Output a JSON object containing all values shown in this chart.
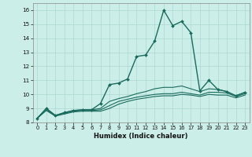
{
  "title": "",
  "xlabel": "Humidex (Indice chaleur)",
  "bg_color": "#cceee8",
  "grid_color": "#aad8d0",
  "line_color": "#1a6b5e",
  "xlim": [
    -0.5,
    23.5
  ],
  "ylim": [
    8.0,
    16.5
  ],
  "xticks": [
    0,
    1,
    2,
    3,
    4,
    5,
    6,
    7,
    8,
    9,
    10,
    11,
    12,
    13,
    14,
    15,
    16,
    17,
    18,
    19,
    20,
    21,
    22,
    23
  ],
  "yticks": [
    8,
    9,
    10,
    11,
    12,
    13,
    14,
    15,
    16
  ],
  "series": [
    {
      "x": [
        0,
        1,
        2,
        3,
        4,
        5,
        6,
        7,
        8,
        9,
        10,
        11,
        12,
        13,
        14,
        15,
        16,
        17,
        18,
        19,
        20,
        21,
        22,
        23
      ],
      "y": [
        8.3,
        9.0,
        8.5,
        8.7,
        8.85,
        8.9,
        8.9,
        9.35,
        10.7,
        10.8,
        11.1,
        12.7,
        12.8,
        13.8,
        16.0,
        14.9,
        15.2,
        14.4,
        10.25,
        11.0,
        10.35,
        10.2,
        9.9,
        10.15
      ],
      "marker": true,
      "lw": 1.0
    },
    {
      "x": [
        0,
        1,
        2,
        3,
        4,
        5,
        6,
        7,
        8,
        9,
        10,
        11,
        12,
        13,
        14,
        15,
        16,
        17,
        18,
        19,
        20,
        21,
        22,
        23
      ],
      "y": [
        8.3,
        9.0,
        8.5,
        8.7,
        8.85,
        8.9,
        8.9,
        9.0,
        9.5,
        9.7,
        9.85,
        10.05,
        10.2,
        10.4,
        10.5,
        10.5,
        10.6,
        10.4,
        10.2,
        10.4,
        10.35,
        10.2,
        9.9,
        10.15
      ],
      "marker": false,
      "lw": 0.8
    },
    {
      "x": [
        0,
        1,
        2,
        3,
        4,
        5,
        6,
        7,
        8,
        9,
        10,
        11,
        12,
        13,
        14,
        15,
        16,
        17,
        18,
        19,
        20,
        21,
        22,
        23
      ],
      "y": [
        8.3,
        8.9,
        8.5,
        8.65,
        8.8,
        8.85,
        8.85,
        8.9,
        9.2,
        9.5,
        9.65,
        9.8,
        9.9,
        10.0,
        10.05,
        10.05,
        10.15,
        10.05,
        9.95,
        10.15,
        10.15,
        10.1,
        9.85,
        10.05
      ],
      "marker": false,
      "lw": 0.8
    },
    {
      "x": [
        0,
        1,
        2,
        3,
        4,
        5,
        6,
        7,
        8,
        9,
        10,
        11,
        12,
        13,
        14,
        15,
        16,
        17,
        18,
        19,
        20,
        21,
        22,
        23
      ],
      "y": [
        8.3,
        8.85,
        8.45,
        8.6,
        8.75,
        8.8,
        8.8,
        8.8,
        9.0,
        9.3,
        9.5,
        9.65,
        9.75,
        9.85,
        9.9,
        9.9,
        10.0,
        9.95,
        9.85,
        10.0,
        9.95,
        9.95,
        9.75,
        9.95
      ],
      "marker": false,
      "lw": 0.8
    }
  ]
}
